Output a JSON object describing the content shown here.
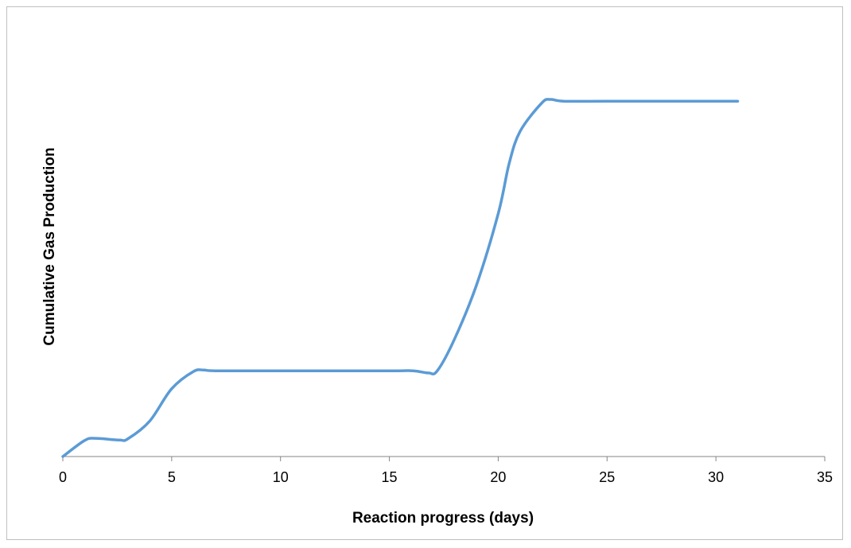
{
  "chart_data": {
    "type": "line",
    "title": "",
    "xlabel": "Reaction progress (days)",
    "ylabel": "Cumulative Gas Production",
    "xlim": [
      0,
      35
    ],
    "xticks": [
      "0",
      "5",
      "10",
      "15",
      "20",
      "25",
      "30",
      "35"
    ],
    "ylim": [
      0,
      1
    ],
    "y_tick_labels_shown": false,
    "grid": false,
    "legend": "none",
    "series": [
      {
        "color": "#5b9bd5",
        "x": [
          0,
          1,
          1.5,
          2.6,
          3,
          4,
          5,
          6,
          6.5,
          7,
          10,
          15,
          16.1,
          16.8,
          17.2,
          18,
          19,
          20,
          20.5,
          21,
          22,
          22.4,
          23,
          25,
          31
        ],
        "y": [
          0,
          0.045,
          0.051,
          0.046,
          0.05,
          0.1,
          0.19,
          0.238,
          0.242,
          0.24,
          0.24,
          0.24,
          0.24,
          0.234,
          0.24,
          0.33,
          0.48,
          0.68,
          0.82,
          0.91,
          0.99,
          1.0,
          0.995,
          0.995,
          0.995
        ]
      }
    ]
  }
}
